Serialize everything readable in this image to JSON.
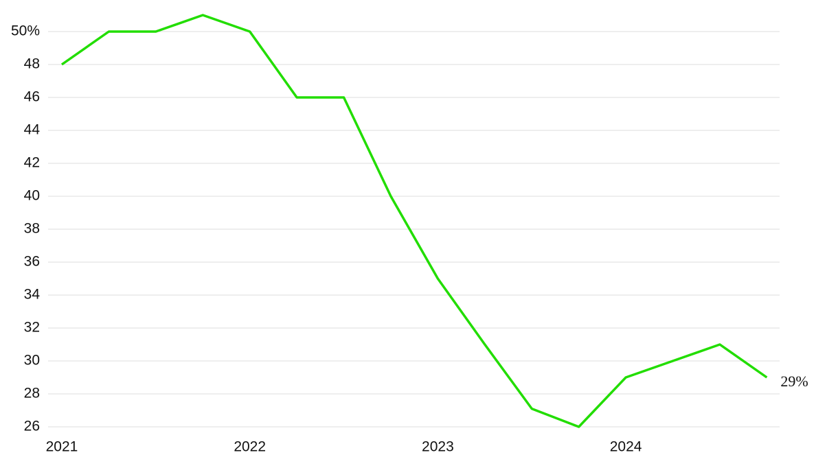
{
  "chart_data": {
    "type": "line",
    "x": [
      2021,
      2021.25,
      2021.5,
      2021.75,
      2022,
      2022.25,
      2022.5,
      2022.75,
      2023,
      2023.25,
      2023.5,
      2023.75,
      2024,
      2024.25,
      2024.5,
      2024.75
    ],
    "series": [
      {
        "color": "#22dd00",
        "values": [
          48,
          50,
          50,
          51,
          50,
          46,
          46,
          40,
          35,
          31,
          27.1,
          26,
          29,
          30,
          31,
          29
        ],
        "value_labels": [
          null,
          null,
          null,
          null,
          null,
          null,
          null,
          null,
          null,
          null,
          null,
          null,
          null,
          null,
          null,
          "29%"
        ]
      }
    ],
    "xlim": [
      2020.927,
      2024.818
    ],
    "xticks": [
      2021,
      2022,
      2023,
      2024
    ],
    "ylim": [
      26,
      50
    ],
    "yticks": [
      26,
      28,
      30,
      32,
      34,
      36,
      38,
      40,
      42,
      44,
      46,
      48,
      {
        "value": 50,
        "label": "50%"
      }
    ],
    "grid": true
  }
}
